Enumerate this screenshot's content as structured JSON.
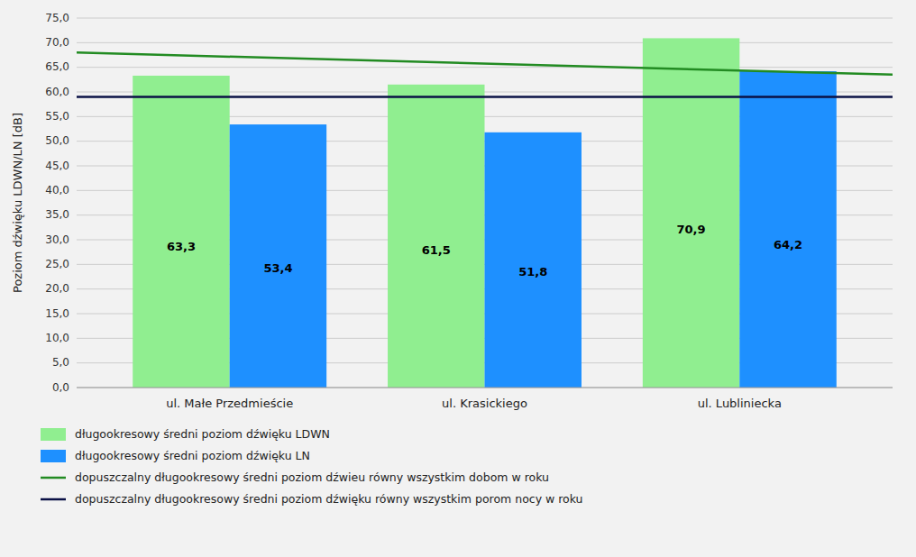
{
  "chart_data": {
    "type": "bar",
    "ylabel": "Poziom dźwięku LDWN/LN [dB]",
    "categories": [
      "ul. Małe Przedmieście",
      "ul. Krasickiego",
      "ul. Lubliniecka"
    ],
    "series": [
      {
        "name": "długookresowy średni poziom dźwięku LDWN",
        "color": "#90EE90",
        "values": [
          63.3,
          61.5,
          70.9
        ],
        "value_labels": [
          "63,3",
          "61,5",
          "70,9"
        ]
      },
      {
        "name": "długookresowy średni poziom dźwięku LN",
        "color": "#1E90FF",
        "values": [
          53.4,
          51.8,
          64.2
        ],
        "value_labels": [
          "53,4",
          "51,8",
          "64,2"
        ]
      }
    ],
    "reference_lines": [
      {
        "name": "dopuszczalny długookresowy średni poziom dźwieu równy wszystkim dobom w roku",
        "color": "#228B22",
        "values": [
          68.0,
          63.5
        ]
      },
      {
        "name": "dopuszczalny długookresowy średni poziom dźwięku równy wszystkim porom nocy w roku",
        "color": "#0a1045",
        "values": [
          59.0
        ]
      }
    ],
    "ylim": [
      0,
      75
    ],
    "yticks": [
      {
        "value": 0.0,
        "label": "0,0"
      },
      {
        "value": 5.0,
        "label": "5,0"
      },
      {
        "value": 10.0,
        "label": "10,0"
      },
      {
        "value": 15.0,
        "label": "15,0"
      },
      {
        "value": 20.0,
        "label": "20,0"
      },
      {
        "value": 25.0,
        "label": "25,0"
      },
      {
        "value": 30.0,
        "label": "30,0"
      },
      {
        "value": 35.0,
        "label": "35,0"
      },
      {
        "value": 40.0,
        "label": "40,0"
      },
      {
        "value": 45.0,
        "label": "45,0"
      },
      {
        "value": 50.0,
        "label": "50,0"
      },
      {
        "value": 55.0,
        "label": "55,0"
      },
      {
        "value": 60.0,
        "label": "60,0"
      },
      {
        "value": 65.0,
        "label": "65,0"
      },
      {
        "value": 70.0,
        "label": "70,0"
      },
      {
        "value": 75.0,
        "label": "75,0"
      }
    ],
    "grid": true,
    "data_labels": true,
    "legend": "bottom"
  }
}
